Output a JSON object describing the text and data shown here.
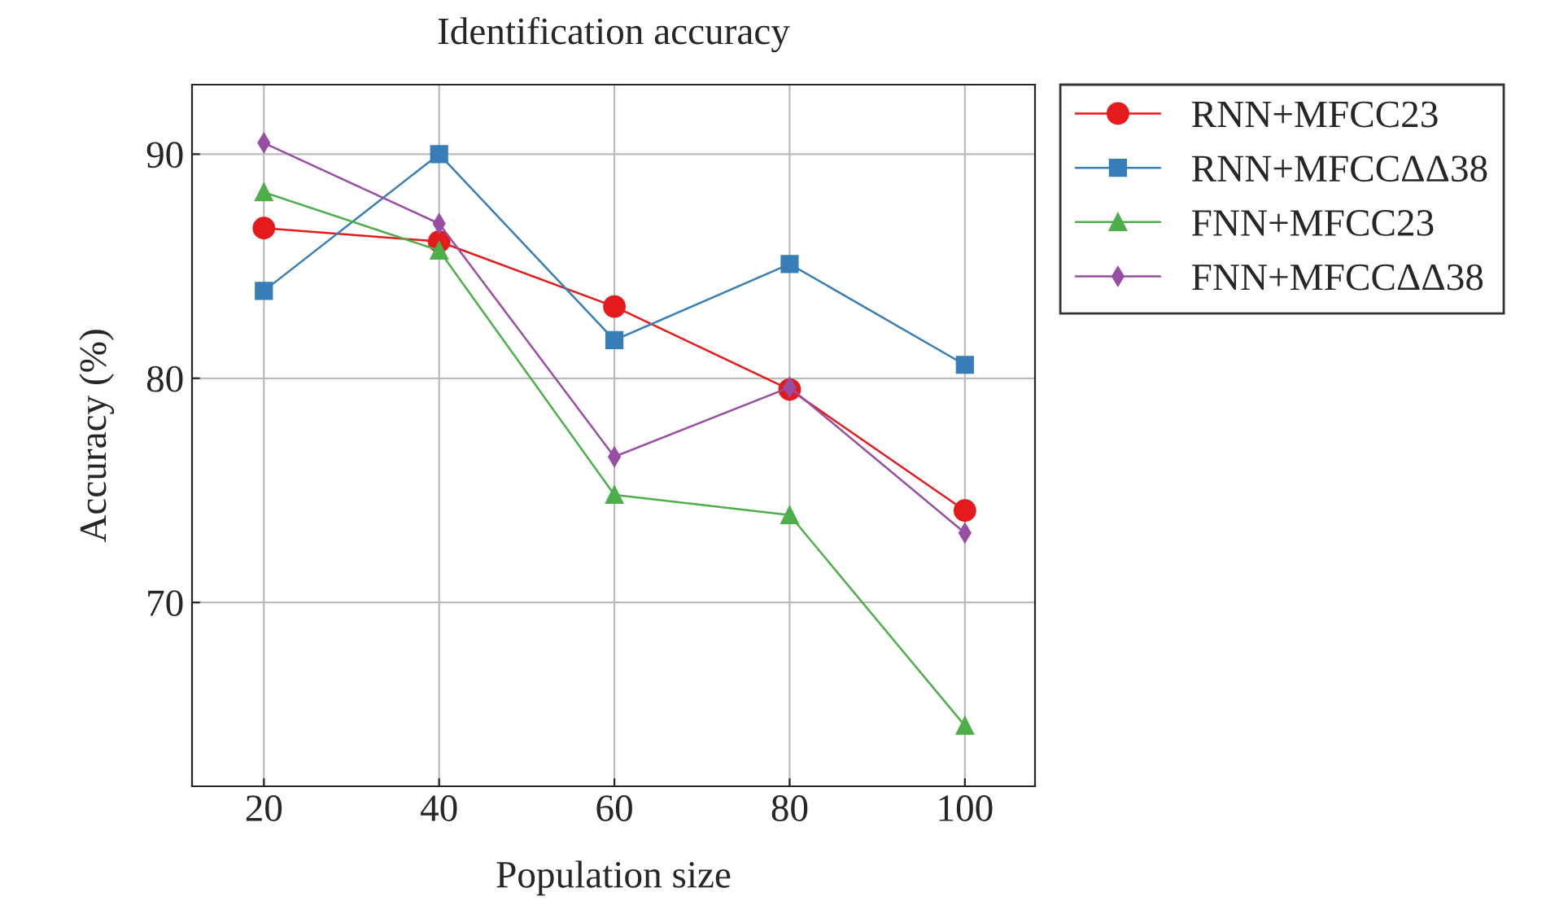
{
  "chart_data": {
    "type": "line",
    "title": "Identification accuracy",
    "xlabel": "Population size",
    "ylabel": "Accuracy (%)",
    "x": [
      20,
      40,
      60,
      80,
      100
    ],
    "series": [
      {
        "name": "RNN+MFCC23",
        "color": "#e41a1c",
        "marker": "circle",
        "values": [
          86.7,
          86.1,
          83.2,
          79.5,
          74.1
        ]
      },
      {
        "name": "RNN+MFCCΔΔ38",
        "color": "#377eb8",
        "marker": "square",
        "values": [
          83.9,
          90.0,
          81.7,
          85.1,
          80.6
        ]
      },
      {
        "name": "FNN+MFCC23",
        "color": "#4daf4a",
        "marker": "triangle",
        "values": [
          88.3,
          85.7,
          74.8,
          73.9,
          64.5
        ]
      },
      {
        "name": "FNN+MFCCΔΔ38",
        "color": "#984ea3",
        "marker": "diamond",
        "values": [
          90.5,
          86.9,
          76.5,
          79.6,
          73.1
        ]
      }
    ],
    "xlim": [
      11.8,
      108
    ],
    "ylim": [
      61.8,
      93.1
    ],
    "xticks": [
      20,
      40,
      60,
      80,
      100
    ],
    "yticks": [
      70,
      80,
      90
    ],
    "grid": true,
    "legend": "top right",
    "line_style": "solid"
  }
}
